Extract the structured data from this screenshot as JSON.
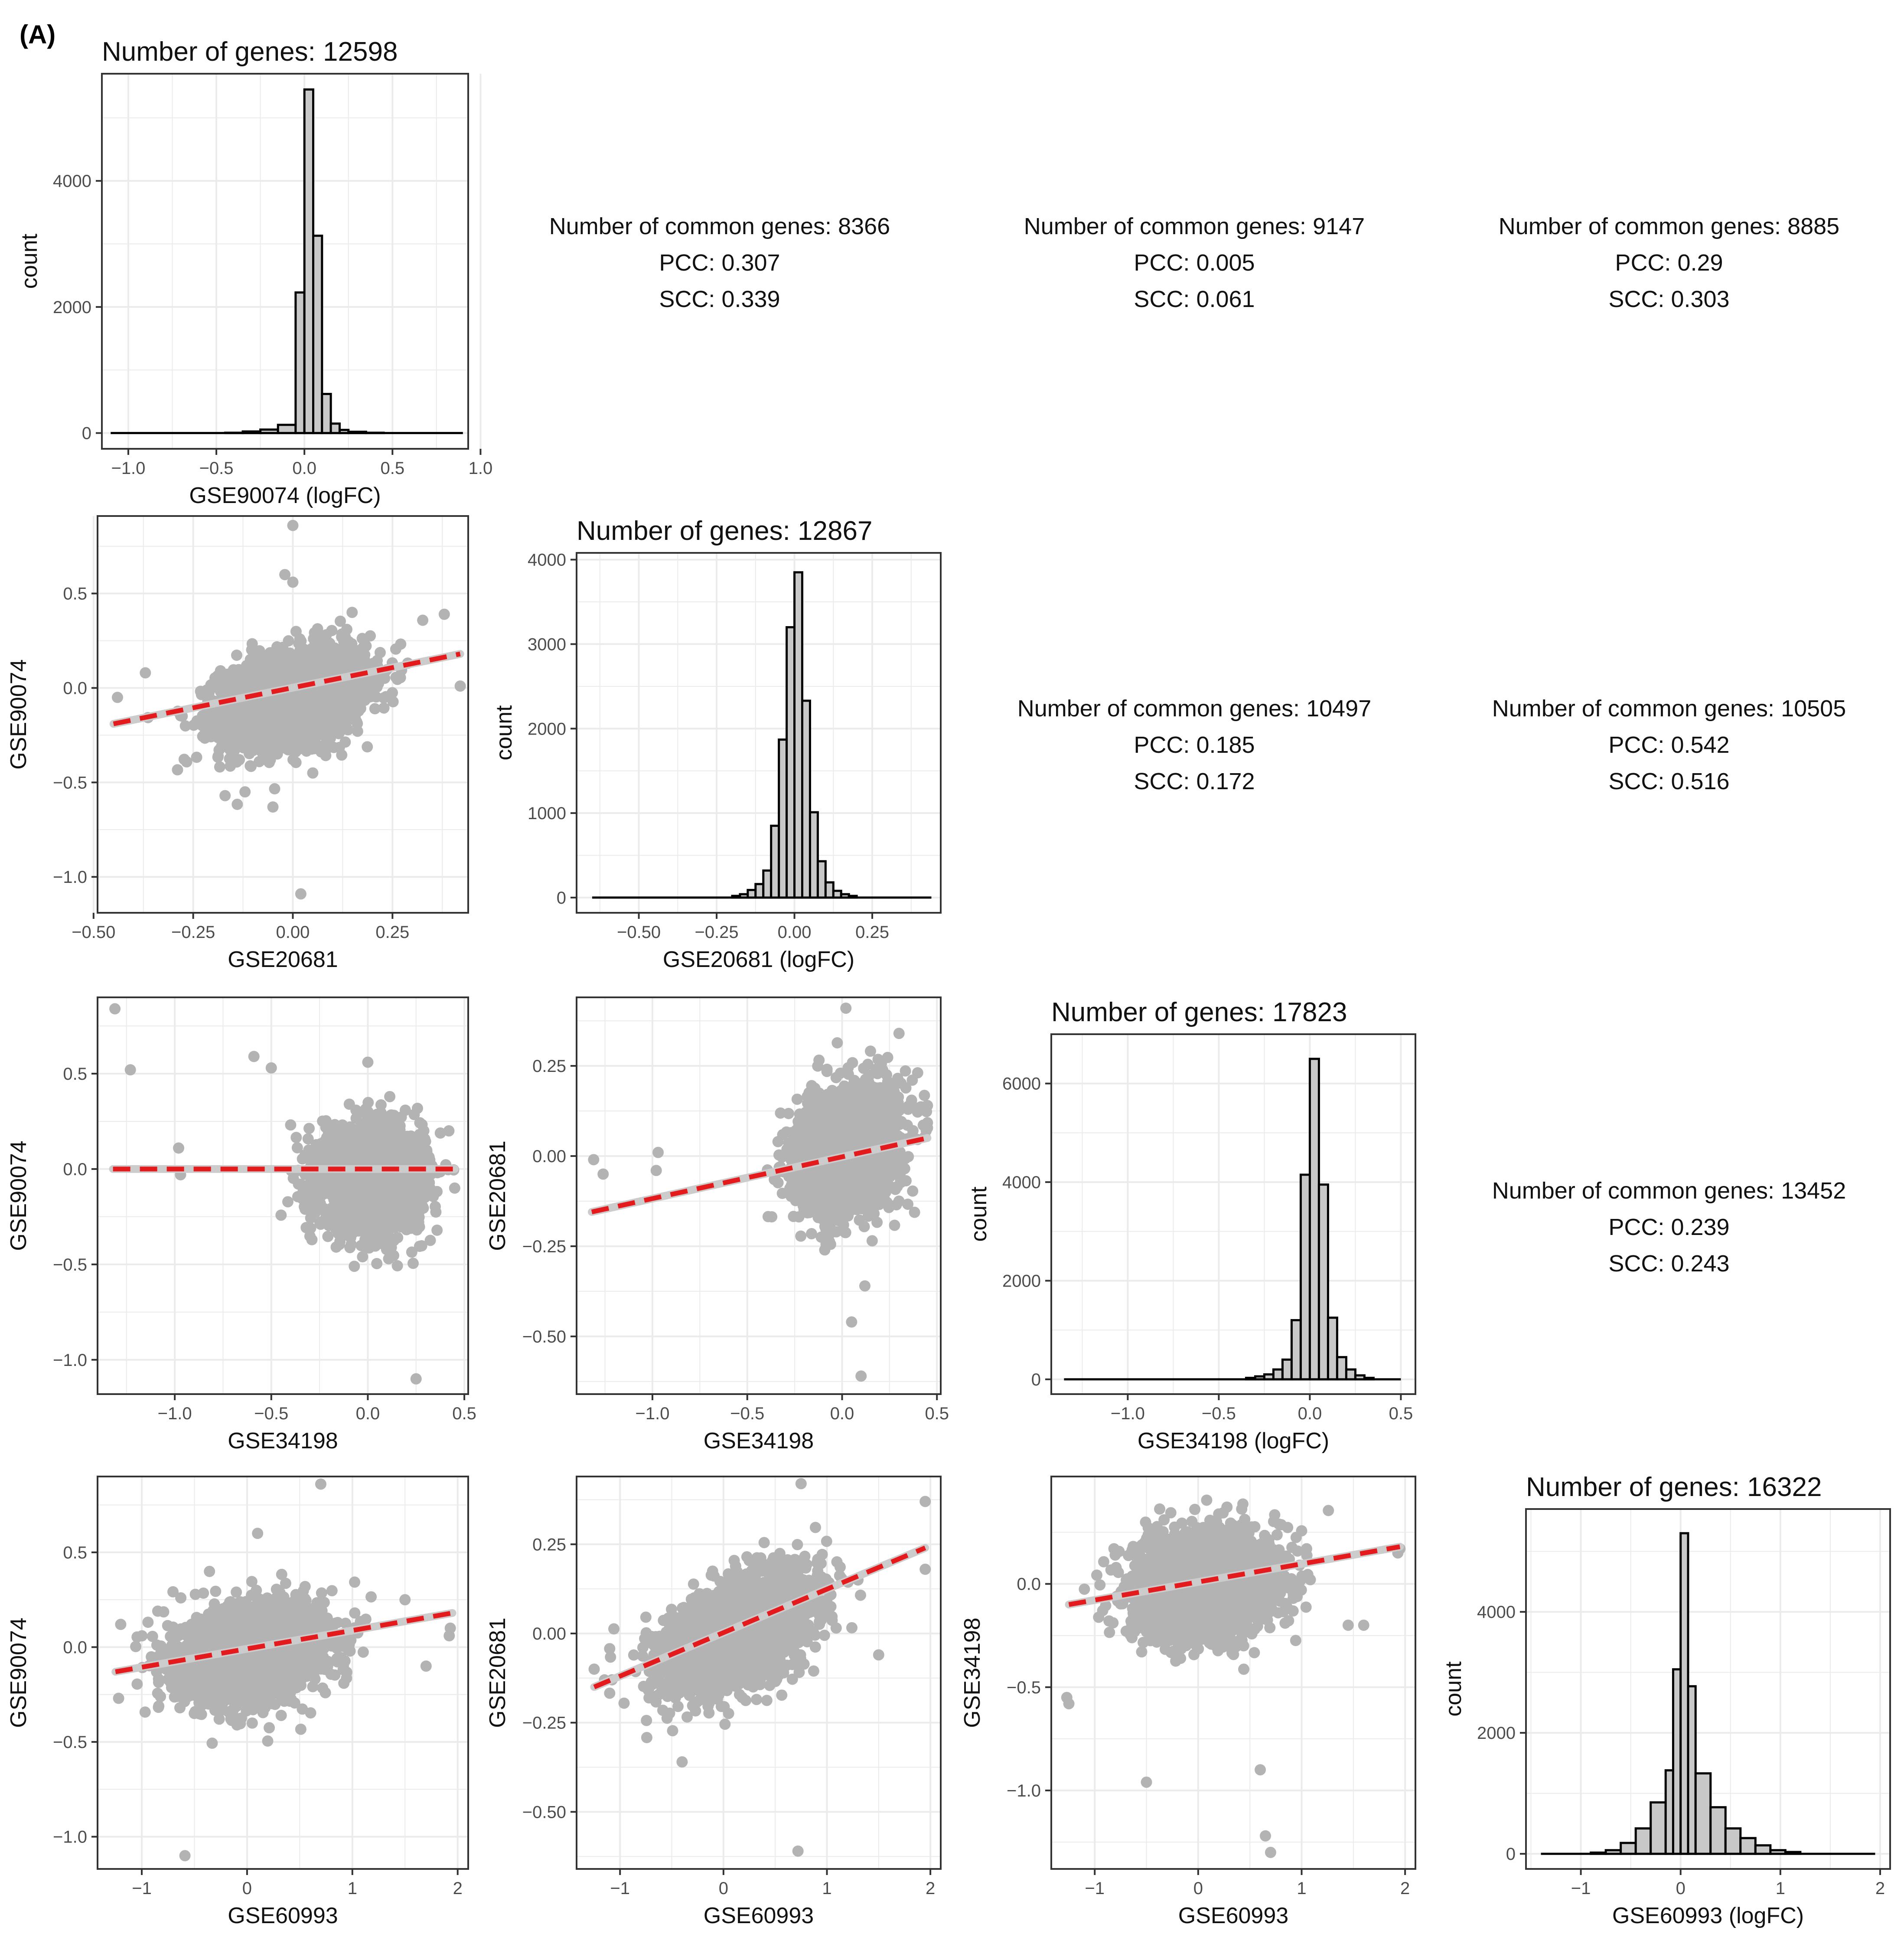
{
  "panel_label": "(A)",
  "colors": {
    "bar_fill": "#c8c8c8",
    "bar_stroke": "#000000",
    "point": "#b3b3b3",
    "fit_line": "#e41a1c",
    "fit_line_under": "#cccccc",
    "grid": "#ebebeb",
    "panel_border": "#333333"
  },
  "stats_labels": {
    "n": "Number of common genes: ",
    "pcc": "PCC: ",
    "scc": "SCC: "
  },
  "chart_data": [
    {
      "type": "bar",
      "id": "hist1",
      "title": "Number of genes: 12598",
      "xlabel": "GSE90074 (logFC)",
      "ylabel": "count",
      "xlim": [
        -1.15,
        0.93
      ],
      "ylim": [
        -250,
        5700
      ],
      "xticks": [
        -1.0,
        -0.5,
        0.0,
        0.5,
        1.0
      ],
      "xtick_labels": [
        "-1.0",
        "-0.5",
        "0.0",
        "0.5",
        "1.0"
      ],
      "yticks": [
        0,
        2000,
        4000
      ],
      "ytick_labels": [
        "0",
        "2000",
        "4000"
      ],
      "bins": [
        [
          -0.45,
          -0.35,
          5
        ],
        [
          -0.35,
          -0.25,
          25
        ],
        [
          -0.25,
          -0.15,
          55
        ],
        [
          -0.15,
          -0.05,
          130
        ],
        [
          -0.05,
          0.0,
          2230
        ],
        [
          0.0,
          0.05,
          5450
        ],
        [
          0.05,
          0.1,
          3130
        ],
        [
          0.1,
          0.15,
          620
        ],
        [
          0.15,
          0.2,
          150
        ],
        [
          0.2,
          0.25,
          50
        ],
        [
          0.25,
          0.35,
          20
        ],
        [
          0.35,
          0.45,
          5
        ]
      ],
      "baseline": [
        -1.1,
        0.9
      ]
    },
    {
      "type": "bar",
      "id": "hist2",
      "title": "Number of genes: 12867",
      "xlabel": "GSE20681 (logFC)",
      "ylabel": "count",
      "xlim": [
        -0.7,
        0.47
      ],
      "ylim": [
        -180,
        4080
      ],
      "xticks": [
        -0.5,
        -0.25,
        0.0,
        0.25
      ],
      "xtick_labels": [
        "-0.50",
        "-0.25",
        "0.00",
        "0.25"
      ],
      "yticks": [
        0,
        1000,
        2000,
        3000,
        4000
      ],
      "ytick_labels": [
        "0",
        "1000",
        "2000",
        "3000",
        "4000"
      ],
      "bins": [
        [
          -0.2,
          -0.175,
          20
        ],
        [
          -0.175,
          -0.15,
          40
        ],
        [
          -0.15,
          -0.125,
          90
        ],
        [
          -0.125,
          -0.1,
          160
        ],
        [
          -0.1,
          -0.075,
          320
        ],
        [
          -0.075,
          -0.05,
          850
        ],
        [
          -0.05,
          -0.025,
          1870
        ],
        [
          -0.025,
          0.0,
          3200
        ],
        [
          0.0,
          0.025,
          3850
        ],
        [
          0.025,
          0.05,
          2330
        ],
        [
          0.05,
          0.075,
          1010
        ],
        [
          0.075,
          0.1,
          430
        ],
        [
          0.1,
          0.125,
          180
        ],
        [
          0.125,
          0.15,
          80
        ],
        [
          0.15,
          0.175,
          40
        ],
        [
          0.175,
          0.2,
          20
        ]
      ],
      "baseline": [
        -0.65,
        0.44
      ]
    },
    {
      "type": "bar",
      "id": "hist3",
      "title": "Number of genes: 17823",
      "xlabel": "GSE34198 (logFC)",
      "ylabel": "count",
      "xlim": [
        -1.42,
        0.58
      ],
      "ylim": [
        -300,
        7000
      ],
      "xticks": [
        -1.0,
        -0.5,
        0.0,
        0.5
      ],
      "xtick_labels": [
        "-1.0",
        "-0.5",
        "0.0",
        "0.5"
      ],
      "yticks": [
        0,
        2000,
        4000,
        6000
      ],
      "ytick_labels": [
        "0",
        "2000",
        "4000",
        "6000"
      ],
      "bins": [
        [
          -0.35,
          -0.3,
          30
        ],
        [
          -0.3,
          -0.25,
          60
        ],
        [
          -0.25,
          -0.2,
          100
        ],
        [
          -0.2,
          -0.15,
          200
        ],
        [
          -0.15,
          -0.1,
          400
        ],
        [
          -0.1,
          -0.05,
          1200
        ],
        [
          -0.05,
          0.0,
          4150
        ],
        [
          0.0,
          0.05,
          6500
        ],
        [
          0.05,
          0.1,
          3950
        ],
        [
          0.1,
          0.15,
          1250
        ],
        [
          0.15,
          0.2,
          450
        ],
        [
          0.2,
          0.25,
          200
        ],
        [
          0.25,
          0.3,
          80
        ],
        [
          0.3,
          0.35,
          30
        ]
      ],
      "baseline": [
        -1.35,
        0.5
      ]
    },
    {
      "type": "bar",
      "id": "hist4",
      "title": "Number of genes: 16322",
      "xlabel": "GSE60993 (logFC)",
      "ylabel": "count",
      "xlim": [
        -1.55,
        2.1
      ],
      "ylim": [
        -250,
        5700
      ],
      "xticks": [
        -1,
        0,
        1,
        2
      ],
      "xtick_labels": [
        "-1",
        "0",
        "1",
        "2"
      ],
      "yticks": [
        0,
        2000,
        4000
      ],
      "ytick_labels": [
        "0",
        "2000",
        "4000"
      ],
      "bins": [
        [
          -0.9,
          -0.75,
          20
        ],
        [
          -0.75,
          -0.6,
          60
        ],
        [
          -0.6,
          -0.45,
          180
        ],
        [
          -0.45,
          -0.3,
          420
        ],
        [
          -0.3,
          -0.15,
          850
        ],
        [
          -0.15,
          -0.075,
          1380
        ],
        [
          -0.075,
          0.0,
          3050
        ],
        [
          0.0,
          0.075,
          5300
        ],
        [
          0.075,
          0.15,
          2770
        ],
        [
          0.15,
          0.3,
          1330
        ],
        [
          0.3,
          0.45,
          770
        ],
        [
          0.45,
          0.6,
          420
        ],
        [
          0.6,
          0.75,
          260
        ],
        [
          0.75,
          0.9,
          140
        ],
        [
          0.9,
          1.05,
          60
        ],
        [
          1.05,
          1.2,
          30
        ]
      ],
      "baseline": [
        -1.4,
        1.95
      ]
    },
    {
      "type": "scatter",
      "id": "sc_r2c1",
      "xlabel": "GSE20681",
      "ylabel": "GSE90074",
      "xlim": [
        -0.49,
        0.44
      ],
      "ylim": [
        -1.19,
        0.91
      ],
      "xticks": [
        -0.5,
        -0.25,
        0.0,
        0.25
      ],
      "xtick_labels": [
        "-0.50",
        "-0.25",
        "0.00",
        "0.25"
      ],
      "yticks": [
        -1.0,
        -0.5,
        0.0,
        0.5
      ],
      "ytick_labels": [
        "-1.0",
        "-0.5",
        "0.0",
        "0.5"
      ],
      "cloud": {
        "cx": 0.0,
        "cy": -0.05,
        "sx": 0.09,
        "sy": 0.12,
        "slope": 0.45,
        "n": 2600,
        "xmin": -0.45,
        "xmax": 0.4,
        "ymin": -0.65,
        "ymax": 0.4
      },
      "outliers": [
        [
          0.0,
          0.86
        ],
        [
          0.02,
          -1.09
        ],
        [
          -0.44,
          -0.05
        ],
        [
          -0.37,
          0.08
        ],
        [
          -0.02,
          0.6
        ],
        [
          0.0,
          0.56
        ],
        [
          0.38,
          0.39
        ],
        [
          0.42,
          0.01
        ],
        [
          -0.05,
          -0.63
        ],
        [
          -0.17,
          -0.57
        ],
        [
          -0.12,
          -0.55
        ],
        [
          0.05,
          -0.45
        ]
      ],
      "fit": {
        "x": [
          -0.45,
          0.42
        ],
        "y": [
          -0.19,
          0.18
        ]
      }
    },
    {
      "type": "scatter",
      "id": "sc_r3c1",
      "xlabel": "GSE34198",
      "ylabel": "GSE90074",
      "xlim": [
        -1.4,
        0.52
      ],
      "ylim": [
        -1.18,
        0.9
      ],
      "xticks": [
        -1.0,
        -0.5,
        0.0,
        0.5
      ],
      "xtick_labels": [
        "-1.0",
        "-0.5",
        "0.0",
        "0.5"
      ],
      "yticks": [
        -1.0,
        -0.5,
        0.0,
        0.5
      ],
      "ytick_labels": [
        "-1.0",
        "-0.5",
        "0.0",
        "0.5"
      ],
      "cloud": {
        "cx": 0.02,
        "cy": -0.05,
        "sx": 0.13,
        "sy": 0.13,
        "slope": 0.0,
        "n": 2600,
        "xmin": -0.45,
        "xmax": 0.45,
        "ymin": -0.63,
        "ymax": 0.45
      },
      "outliers": [
        [
          -1.31,
          0.84
        ],
        [
          -1.23,
          0.52
        ],
        [
          -0.98,
          0.11
        ],
        [
          -0.97,
          -0.03
        ],
        [
          -0.59,
          0.59
        ],
        [
          -0.5,
          0.53
        ],
        [
          0.25,
          -1.1
        ],
        [
          0.0,
          0.56
        ],
        [
          0.45,
          -0.1
        ],
        [
          0.42,
          0.2
        ]
      ],
      "fit": {
        "x": [
          -1.32,
          0.45
        ],
        "y": [
          0.0,
          0.0
        ]
      }
    },
    {
      "type": "scatter",
      "id": "sc_r3c2",
      "xlabel": "GSE34198",
      "ylabel": "GSE20681",
      "xlim": [
        -1.4,
        0.52
      ],
      "ylim": [
        -0.66,
        0.44
      ],
      "xticks": [
        -1.0,
        -0.5,
        0.0,
        0.5
      ],
      "xtick_labels": [
        "-1.0",
        "-0.5",
        "0.0",
        "0.5"
      ],
      "yticks": [
        -0.5,
        -0.25,
        0.0,
        0.25
      ],
      "ytick_labels": [
        "-0.50",
        "-0.25",
        "0.00",
        "0.25"
      ],
      "cloud": {
        "cx": 0.03,
        "cy": 0.02,
        "sx": 0.13,
        "sy": 0.08,
        "slope": 0.15,
        "n": 2600,
        "xmin": -0.45,
        "xmax": 0.45,
        "ymin": -0.3,
        "ymax": 0.42
      },
      "outliers": [
        [
          -1.31,
          -0.01
        ],
        [
          -1.26,
          -0.05
        ],
        [
          -0.97,
          0.01
        ],
        [
          -0.98,
          -0.04
        ],
        [
          0.05,
          -0.46
        ],
        [
          0.12,
          -0.36
        ],
        [
          0.1,
          -0.61
        ],
        [
          0.02,
          0.41
        ],
        [
          0.45,
          0.14
        ],
        [
          0.3,
          0.34
        ]
      ],
      "fit": {
        "x": [
          -1.32,
          0.45
        ],
        "y": [
          -0.155,
          0.05
        ]
      }
    },
    {
      "type": "scatter",
      "id": "sc_r4c1",
      "xlabel": "GSE60993",
      "ylabel": "GSE90074",
      "xlim": [
        -1.42,
        2.1
      ],
      "ylim": [
        -1.17,
        0.9
      ],
      "xticks": [
        -1,
        0,
        1,
        2
      ],
      "xtick_labels": [
        "-1",
        "0",
        "1",
        "2"
      ],
      "yticks": [
        -1.0,
        -0.5,
        0.0,
        0.5
      ],
      "ytick_labels": [
        "-1.0",
        "-0.5",
        "0.0",
        "0.5"
      ],
      "cloud": {
        "cx": 0.05,
        "cy": -0.03,
        "sx": 0.35,
        "sy": 0.12,
        "slope": 0.08,
        "n": 2600,
        "xmin": -1.1,
        "xmax": 1.55,
        "ymin": -0.62,
        "ymax": 0.45
      },
      "outliers": [
        [
          -1.22,
          -0.27
        ],
        [
          -1.2,
          0.12
        ],
        [
          -0.59,
          -1.1
        ],
        [
          0.7,
          0.86
        ],
        [
          0.1,
          0.6
        ],
        [
          1.93,
          0.1
        ],
        [
          1.92,
          0.06
        ],
        [
          1.7,
          -0.1
        ],
        [
          1.5,
          0.25
        ]
      ],
      "fit": {
        "x": [
          -1.25,
          1.95
        ],
        "y": [
          -0.13,
          0.18
        ]
      }
    },
    {
      "type": "scatter",
      "id": "sc_r4c2",
      "xlabel": "GSE60993",
      "ylabel": "GSE20681",
      "xlim": [
        -1.42,
        2.1
      ],
      "ylim": [
        -0.66,
        0.44
      ],
      "xticks": [
        -1,
        0,
        1,
        2
      ],
      "xtick_labels": [
        "-1",
        "0",
        "1",
        "2"
      ],
      "yticks": [
        -0.5,
        -0.25,
        0.0,
        0.25
      ],
      "ytick_labels": [
        "-0.50",
        "-0.25",
        "0.00",
        "0.25"
      ],
      "cloud": {
        "cx": 0.15,
        "cy": 0.0,
        "sx": 0.35,
        "sy": 0.07,
        "slope": 0.11,
        "n": 2600,
        "xmin": -1.1,
        "xmax": 1.6,
        "ymin": -0.3,
        "ymax": 0.4
      },
      "outliers": [
        [
          -1.25,
          -0.1
        ],
        [
          -1.15,
          -0.13
        ],
        [
          0.75,
          0.42
        ],
        [
          0.72,
          -0.61
        ],
        [
          1.95,
          0.37
        ],
        [
          1.95,
          0.18
        ],
        [
          -0.4,
          -0.36
        ],
        [
          1.5,
          -0.06
        ],
        [
          1.3,
          0.15
        ]
      ],
      "fit": {
        "x": [
          -1.25,
          1.95
        ],
        "y": [
          -0.15,
          0.24
        ]
      }
    },
    {
      "type": "scatter",
      "id": "sc_r4c3",
      "xlabel": "GSE60993",
      "ylabel": "GSE34198",
      "xlim": [
        -1.42,
        2.1
      ],
      "ylim": [
        -1.38,
        0.52
      ],
      "xticks": [
        -1,
        0,
        1,
        2
      ],
      "xtick_labels": [
        "-1",
        "0",
        "1",
        "2"
      ],
      "yticks": [
        -1.0,
        -0.5,
        0.0
      ],
      "ytick_labels": [
        "-1.0",
        "-0.5",
        "0.0"
      ],
      "cloud": {
        "cx": 0.08,
        "cy": 0.0,
        "sx": 0.35,
        "sy": 0.12,
        "slope": 0.06,
        "n": 2600,
        "xmin": -1.1,
        "xmax": 1.55,
        "ymin": -0.6,
        "ymax": 0.48
      },
      "outliers": [
        [
          -1.27,
          -0.55
        ],
        [
          -1.25,
          -0.58
        ],
        [
          -0.5,
          -0.96
        ],
        [
          0.6,
          -0.9
        ],
        [
          0.65,
          -1.22
        ],
        [
          0.7,
          -1.3
        ],
        [
          1.95,
          0.17
        ],
        [
          1.93,
          0.15
        ],
        [
          1.6,
          -0.2
        ],
        [
          1.45,
          -0.2
        ]
      ],
      "fit": {
        "x": [
          -1.25,
          1.95
        ],
        "y": [
          -0.1,
          0.18
        ]
      }
    }
  ],
  "stats": [
    {
      "id": "s12",
      "common": "8366",
      "pcc": "0.307",
      "scc": "0.339"
    },
    {
      "id": "s13",
      "common": "9147",
      "pcc": "0.005",
      "scc": "0.061"
    },
    {
      "id": "s14",
      "common": "8885",
      "pcc": "0.29",
      "scc": "0.303"
    },
    {
      "id": "s23",
      "common": "10497",
      "pcc": "0.185",
      "scc": "0.172"
    },
    {
      "id": "s24",
      "common": "10505",
      "pcc": "0.542",
      "scc": "0.516"
    },
    {
      "id": "s34",
      "common": "13452",
      "pcc": "0.239",
      "scc": "0.243"
    }
  ]
}
